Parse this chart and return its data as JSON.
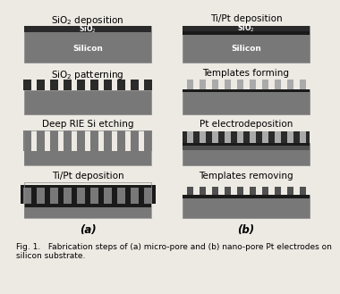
{
  "fig_bg": "#ede9e3",
  "silicon_color": "#787878",
  "sio2_color": "#2a2a2a",
  "tipt_color": "#1a1a1a",
  "pt_color": "#505050",
  "template_color": "#aaaaaa",
  "caption": "Fig. 1.   Fabrication steps of (a) micro-pore and (b) nano-pore Pt electrodes on\nsilicon substrate.",
  "label_a": "(a)",
  "label_b": "(b)",
  "col_a_titles": [
    "SiO$_2$ deposition",
    "SiO$_2$ patterning",
    "Deep RIE Si etching",
    "Ti/Pt deposition"
  ],
  "col_b_titles": [
    "Ti/Pt deposition",
    "Templates forming",
    "Pt electrodeposition",
    "Templates removing"
  ],
  "font_size_title": 7.5,
  "font_size_caption": 6.5,
  "font_size_label": 8.5,
  "font_size_inner": 5.5
}
